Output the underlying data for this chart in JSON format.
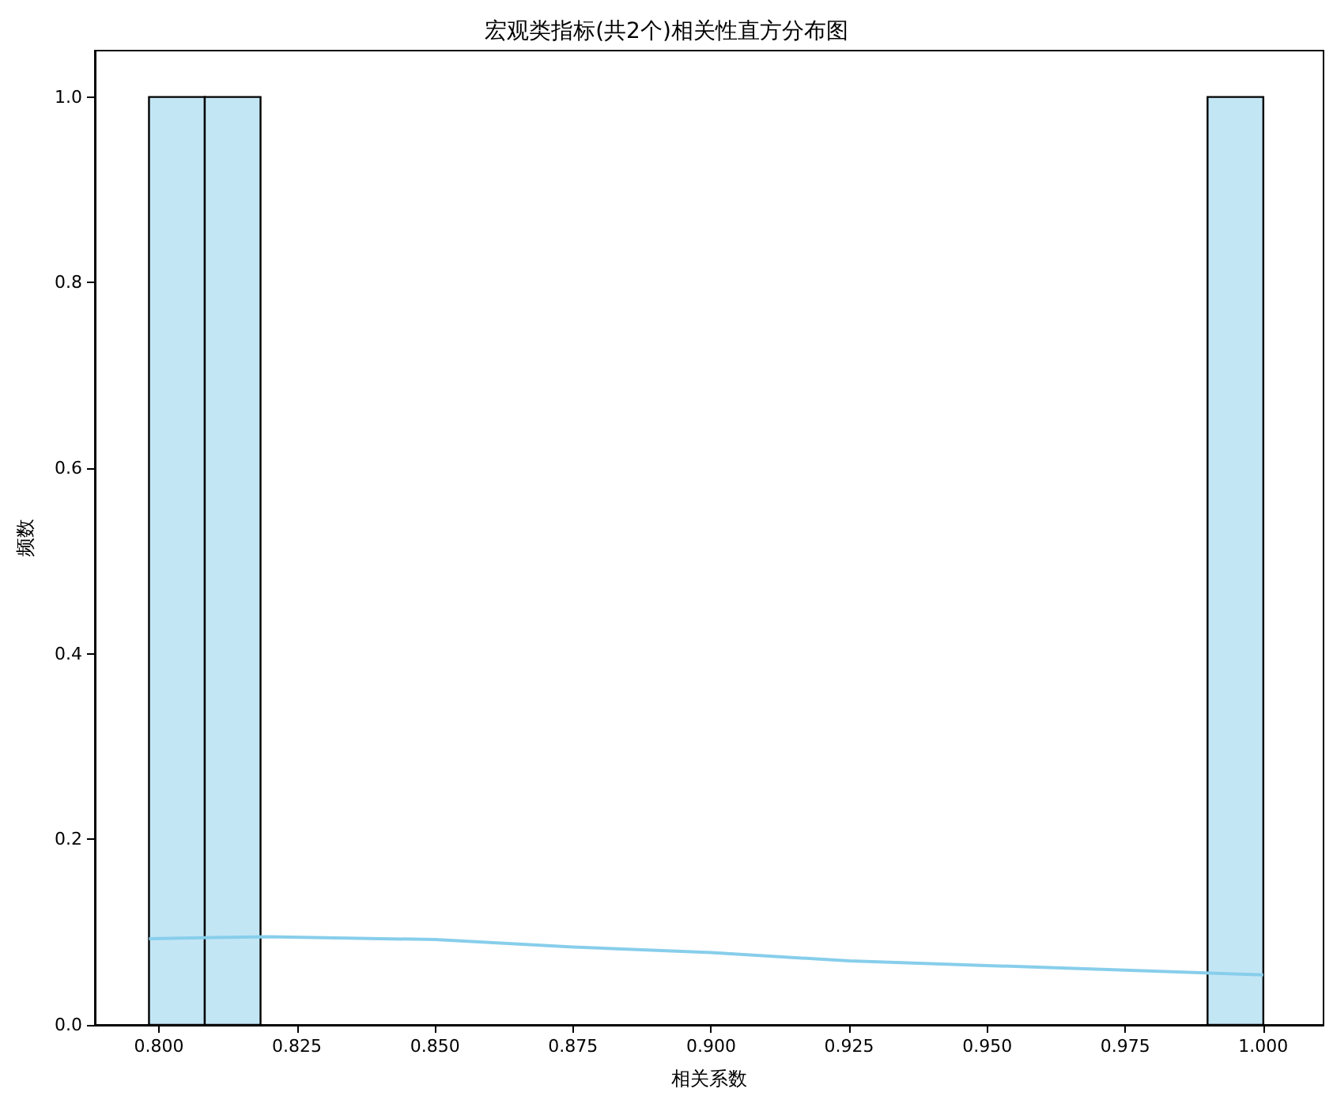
{
  "chart_data": {
    "type": "histogram",
    "title": "宏观类指标(共2个)相关性直方分布图",
    "xlabel": "相关系数",
    "ylabel": "频数",
    "xlim": [
      0.7884,
      1.0109
    ],
    "ylim": [
      0,
      1.05
    ],
    "xticks": [
      {
        "value": 0.8,
        "label": "0.800"
      },
      {
        "value": 0.825,
        "label": "0.825"
      },
      {
        "value": 0.85,
        "label": "0.850"
      },
      {
        "value": 0.875,
        "label": "0.875"
      },
      {
        "value": 0.9,
        "label": "0.900"
      },
      {
        "value": 0.925,
        "label": "0.925"
      },
      {
        "value": 0.95,
        "label": "0.950"
      },
      {
        "value": 0.975,
        "label": "0.975"
      },
      {
        "value": 1.0,
        "label": "1.000"
      }
    ],
    "yticks": [
      {
        "value": 0,
        "label": "0.0"
      },
      {
        "value": 0.2,
        "label": "0.2"
      },
      {
        "value": 0.4,
        "label": "0.4"
      },
      {
        "value": 0.6,
        "label": "0.6"
      },
      {
        "value": 0.8,
        "label": "0.8"
      },
      {
        "value": 1.0,
        "label": "1.0"
      }
    ],
    "grid": false,
    "series": [
      {
        "color": "#c3e6f5",
        "bins": [
          0.7982,
          0.8083,
          0.8184,
          0.9899,
          1.0
        ],
        "values": [
          1,
          1,
          0,
          1
        ]
      },
      {
        "type": "line",
        "color": "#87ceeb",
        "x": [
          0.7982,
          0.82,
          0.85,
          0.875,
          0.9,
          0.925,
          0.95,
          0.975,
          1.0
        ],
        "values": [
          0.093,
          0.095,
          0.092,
          0.084,
          0.078,
          0.069,
          0.064,
          0.059,
          0.054
        ]
      }
    ]
  }
}
